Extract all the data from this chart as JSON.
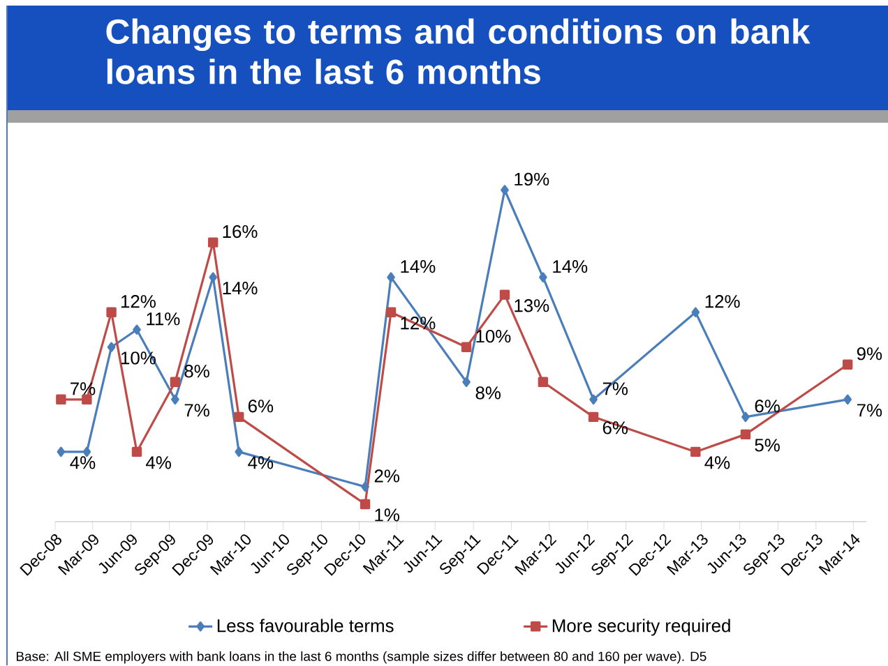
{
  "chart_data": {
    "type": "line",
    "title": "Changes to terms and conditions on bank loans in the last 6 months",
    "x": [
      "2008-12-15",
      "2009-02-15",
      "2009-04-15",
      "2009-06-15",
      "2009-09-15",
      "2009-12-15",
      "2010-02-15",
      "2010-12-15",
      "2011-02-15",
      "2011-08-15",
      "2011-11-15",
      "2012-02-15",
      "2012-06-15",
      "2013-02-15",
      "2013-06-15",
      "2014-02-15"
    ],
    "xlim": [
      "2008-12-01",
      "2014-04-01"
    ],
    "xticks": [
      {
        "value": "2008-12-01",
        "label": "Dec-08"
      },
      {
        "value": "2009-03-01",
        "label": "Mar-09"
      },
      {
        "value": "2009-06-01",
        "label": "Jun-09"
      },
      {
        "value": "2009-09-01",
        "label": "Sep-09"
      },
      {
        "value": "2009-12-01",
        "label": "Dec-09"
      },
      {
        "value": "2010-03-01",
        "label": "Mar-10"
      },
      {
        "value": "2010-06-01",
        "label": "Jun-10"
      },
      {
        "value": "2010-09-01",
        "label": "Sep-10"
      },
      {
        "value": "2010-12-01",
        "label": "Dec-10"
      },
      {
        "value": "2011-03-01",
        "label": "Mar-11"
      },
      {
        "value": "2011-06-01",
        "label": "Jun-11"
      },
      {
        "value": "2011-09-01",
        "label": "Sep-11"
      },
      {
        "value": "2011-12-01",
        "label": "Dec-11"
      },
      {
        "value": "2012-03-01",
        "label": "Mar-12"
      },
      {
        "value": "2012-06-01",
        "label": "Jun-12"
      },
      {
        "value": "2012-09-01",
        "label": "Sep-12"
      },
      {
        "value": "2012-12-01",
        "label": "Dec-12"
      },
      {
        "value": "2013-03-01",
        "label": "Mar-13"
      },
      {
        "value": "2013-06-01",
        "label": "Jun-13"
      },
      {
        "value": "2013-09-01",
        "label": "Sep-13"
      },
      {
        "value": "2013-12-01",
        "label": "Dec-13"
      },
      {
        "value": "2014-03-01",
        "label": "Mar-14"
      }
    ],
    "tick_labels": "x",
    "series": [
      {
        "name": "Less favourable terms",
        "color": "#4a7ebb",
        "marker": "diamond",
        "values": [
          4,
          4,
          10,
          11,
          7,
          14,
          4,
          2,
          14,
          8,
          19,
          14,
          7,
          12,
          6,
          7
        ],
        "value_labels": [
          "4%",
          null,
          "10%",
          "11%",
          "7%",
          "14%",
          "4%",
          "2%",
          "14%",
          "8%",
          "19%",
          "14%",
          "7%",
          "12%",
          "6%",
          "7%"
        ]
      },
      {
        "name": "More security required",
        "color": "#be4b48",
        "marker": "square",
        "values": [
          7,
          7,
          12,
          4,
          8,
          16,
          6,
          1,
          12,
          10,
          13,
          8,
          6,
          4,
          5,
          9
        ],
        "value_labels": [
          "7%",
          null,
          "12%",
          "4%",
          "8%",
          "16%",
          "6%",
          "1%",
          "12%",
          "10%",
          "13%",
          null,
          "6%",
          "4%",
          "5%",
          "9%"
        ]
      }
    ],
    "legend": "bottom",
    "grid": false,
    "annotations": [
      "Base: All SME employers with bank loans in the last 6 months (sample sizes differ between 80 and 160 per wave). D5"
    ]
  }
}
